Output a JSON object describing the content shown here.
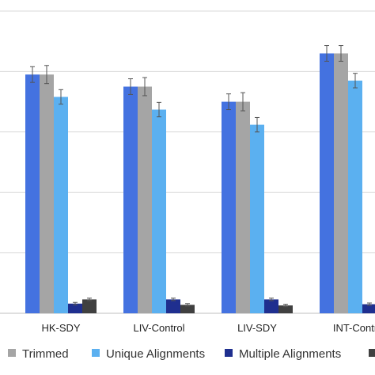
{
  "chart_data": {
    "type": "bar",
    "categories": [
      "HK-SDY",
      "LIV-Control",
      "LIV-SDY",
      "INT-Contr"
    ],
    "series": [
      {
        "name": "",
        "color": "#4472E0",
        "values": [
          3.95,
          3.75,
          3.5,
          4.3
        ],
        "errors": [
          0.13,
          0.13,
          0.13,
          0.13
        ]
      },
      {
        "name": "Trimmed",
        "color": "#A5A5A5",
        "values": [
          3.95,
          3.75,
          3.5,
          4.3
        ],
        "errors": [
          0.15,
          0.15,
          0.15,
          0.13
        ]
      },
      {
        "name": "Unique Alignments",
        "color": "#5BB0F0",
        "values": [
          3.58,
          3.37,
          3.12,
          3.85
        ],
        "errors": [
          0.12,
          0.12,
          0.12,
          0.12
        ]
      },
      {
        "name": "Multiple Alignments",
        "color": "#1F2F8F",
        "values": [
          0.16,
          0.23,
          0.23,
          0.15
        ],
        "errors": [
          0.02,
          0.02,
          0.02,
          0.02
        ]
      },
      {
        "name": "",
        "color": "#404040",
        "values": [
          0.23,
          0.14,
          0.13,
          0.14
        ],
        "errors": [
          0.02,
          0.02,
          0.02,
          0.02
        ]
      }
    ],
    "ylim": [
      0,
      5
    ],
    "grid": true,
    "legend": "bottom"
  }
}
